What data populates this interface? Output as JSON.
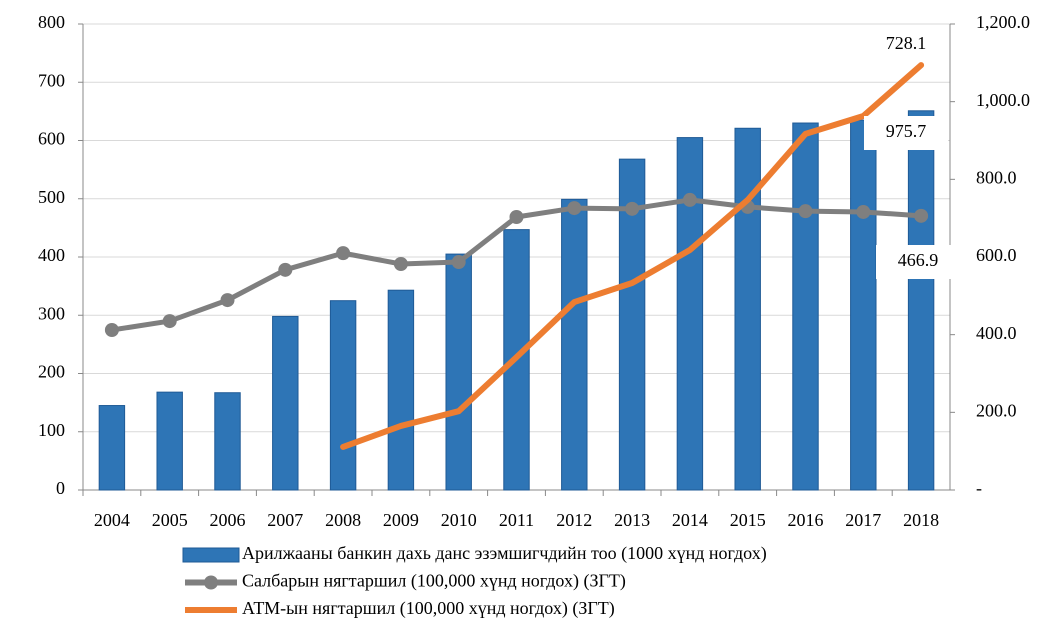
{
  "chart_data": {
    "type": "bar_line",
    "categories": [
      "2004",
      "2005",
      "2006",
      "2007",
      "2008",
      "2009",
      "2010",
      "2011",
      "2012",
      "2013",
      "2014",
      "2015",
      "2016",
      "2017",
      "2018"
    ],
    "series": [
      {
        "name": "Арилжааны банкин дахь данс эзэмшигчдийн тоо (1000 хүнд ногдох)",
        "color": "#2e75b6",
        "type": "bar",
        "values": [
          145,
          168,
          167,
          298,
          325,
          343,
          405,
          447,
          499,
          568,
          605,
          621,
          630,
          635,
          651
        ]
      },
      {
        "name": "Салбарын нягтаршил  (100,000 хүнд ногдох) (ЗГТ)",
        "color": "#7f7f7f",
        "type": "line",
        "axis": "y2",
        "values": [
          412,
          435,
          489,
          567,
          610,
          582,
          587,
          703,
          726,
          724,
          747,
          729,
          718,
          716,
          706
        ]
      },
      {
        "name": "АТМ-ын нягтаршил (100,000 хүнд ногдох) (ЗГТ)",
        "color": "#ed7d31",
        "type": "line",
        "axis": "y2",
        "values": [
          null,
          null,
          null,
          null,
          111,
          165,
          203,
          342,
          484,
          533,
          618,
          747,
          917,
          963,
          1094
        ]
      }
    ],
    "ylim": [
      0,
      800
    ],
    "yticks": [
      0,
      100,
      200,
      300,
      400,
      500,
      600,
      700,
      800
    ],
    "y2lim": [
      0,
      1200
    ],
    "y2ticks": [
      {
        "value": 0,
        "label": "-"
      },
      {
        "value": 200,
        "label": "200.0"
      },
      {
        "value": 400,
        "label": "400.0"
      },
      {
        "value": 600,
        "label": "600.0"
      },
      {
        "value": 800,
        "label": "800.0"
      },
      {
        "value": 1000,
        "label": "1,000.0"
      },
      {
        "value": 1200,
        "label": "1,200.0"
      }
    ],
    "annotations": [
      "728.1",
      "975.7",
      "466.9"
    ]
  }
}
